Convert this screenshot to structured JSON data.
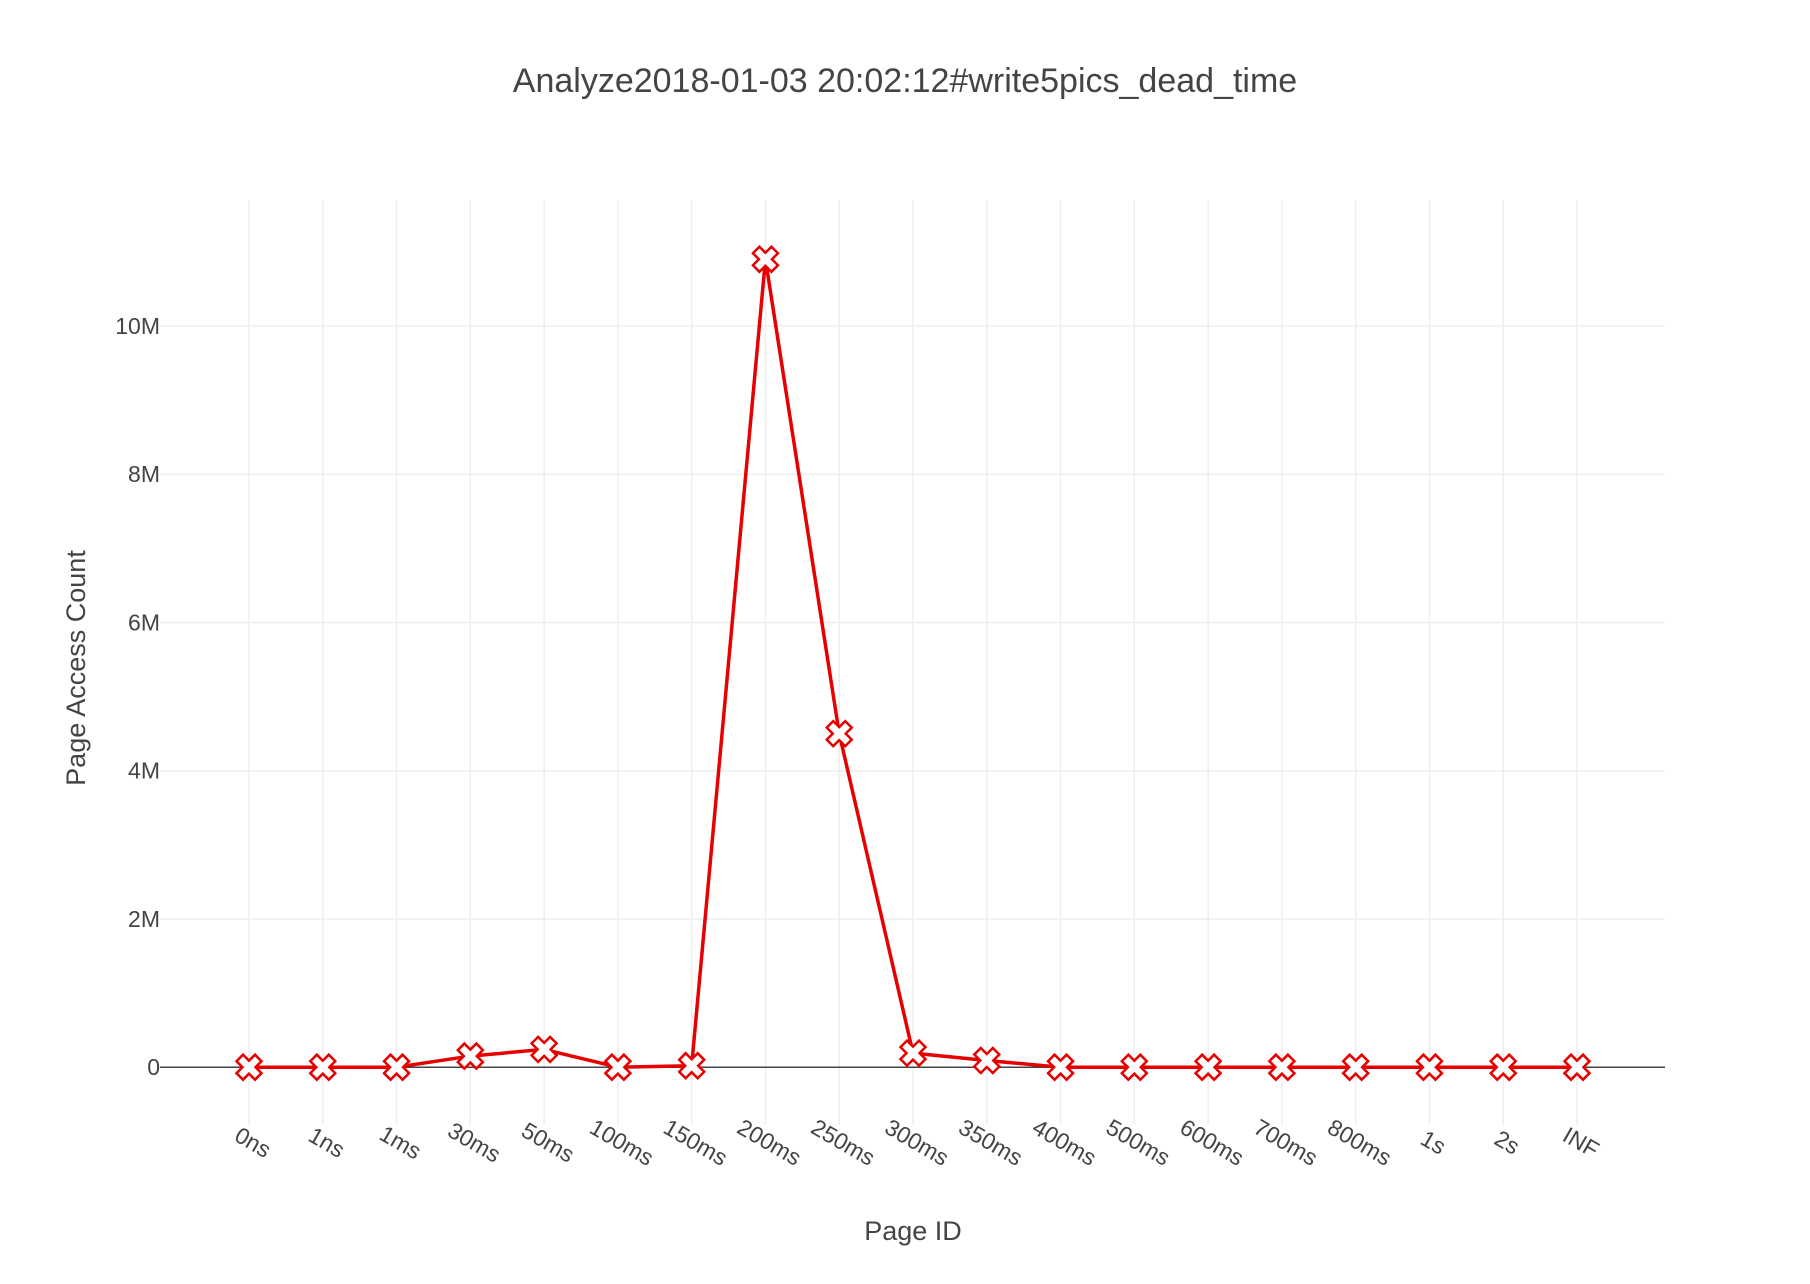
{
  "chart_data": {
    "type": "line",
    "title": "Analyze2018-01-03 20:02:12#write5pics_dead_time",
    "xlabel": "Page ID",
    "ylabel": "Page Access Count",
    "categories": [
      "0ns",
      "1ns",
      "1ms",
      "30ms",
      "50ms",
      "100ms",
      "150ms",
      "200ms",
      "250ms",
      "300ms",
      "350ms",
      "400ms",
      "500ms",
      "600ms",
      "700ms",
      "800ms",
      "1s",
      "2s",
      "INF"
    ],
    "series": [
      {
        "values": [
          0,
          0,
          0,
          150000,
          240000,
          0,
          20000,
          10900000,
          4500000,
          190000,
          90000,
          0,
          0,
          0,
          0,
          0,
          0,
          0,
          0
        ],
        "color": "#e60000",
        "marker": "x-open"
      }
    ],
    "ylim": [
      -780000,
      11700000
    ],
    "yticks": [
      0,
      2000000,
      4000000,
      6000000,
      8000000,
      10000000
    ],
    "ytick_labels": [
      "0",
      "2M",
      "4M",
      "6M",
      "8M",
      "10M"
    ],
    "grid": true,
    "legend": "none"
  }
}
